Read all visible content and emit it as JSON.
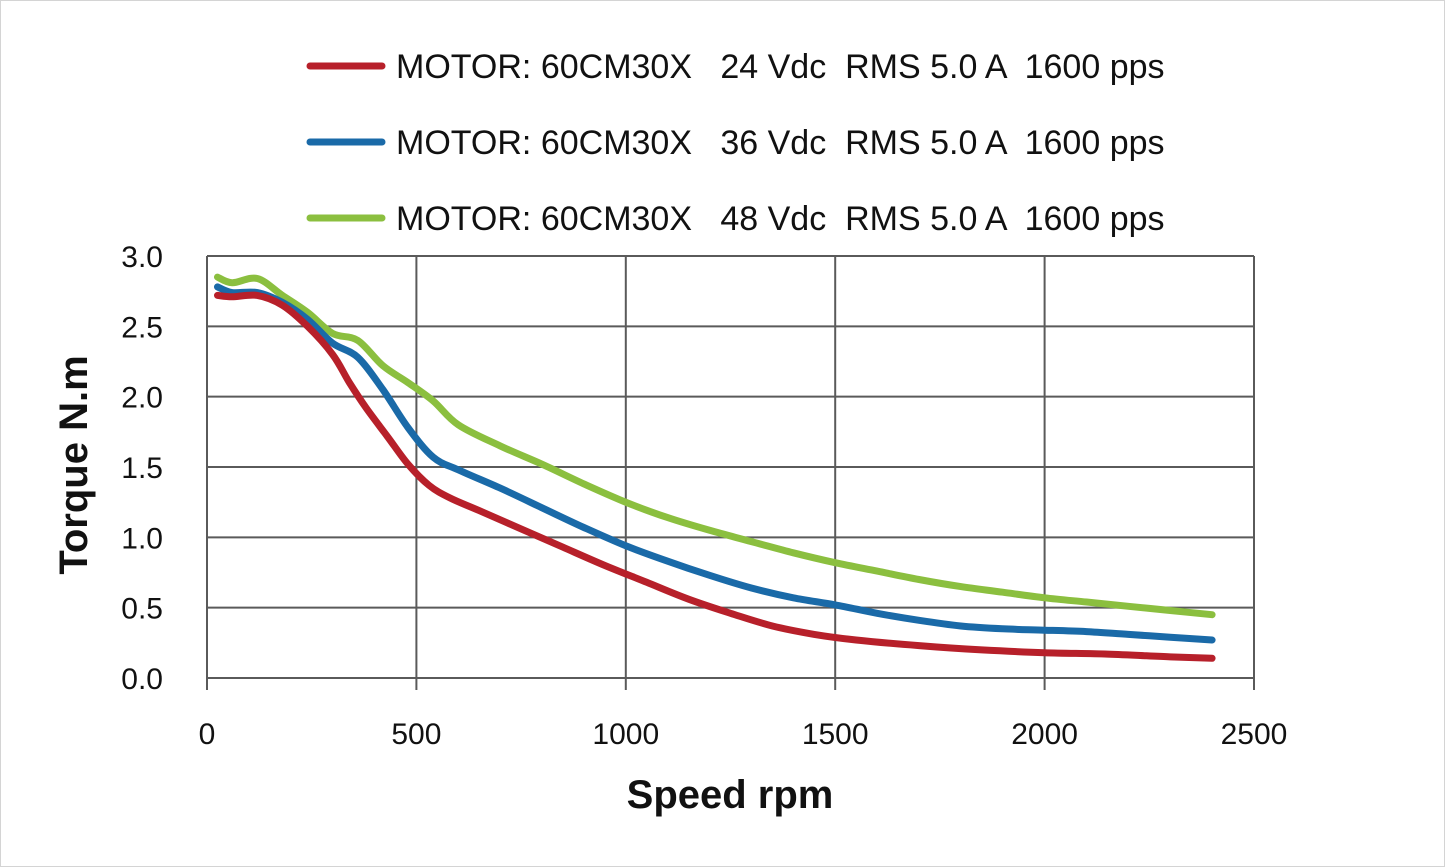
{
  "chart_data": {
    "type": "line",
    "title": "",
    "xlabel": "Speed rpm",
    "ylabel": "Torque N.m",
    "xlim": [
      0,
      2500
    ],
    "ylim": [
      0,
      3.0
    ],
    "x_ticks": [
      "0",
      "500",
      "1000",
      "1500",
      "2000",
      "2500"
    ],
    "y_ticks": [
      "0.0",
      "0.5",
      "1.0",
      "1.5",
      "2.0",
      "2.5",
      "3.0"
    ],
    "grid": true,
    "legend_position": "top",
    "series": [
      {
        "name": "MOTOR: 60CM30X   24 Vdc  RMS 5.0 A  1600 pps",
        "color": "#b7202a",
        "points": [
          [
            25,
            2.72
          ],
          [
            60,
            2.71
          ],
          [
            120,
            2.72
          ],
          [
            180,
            2.65
          ],
          [
            240,
            2.5
          ],
          [
            300,
            2.3
          ],
          [
            340,
            2.1
          ],
          [
            380,
            1.92
          ],
          [
            430,
            1.72
          ],
          [
            480,
            1.52
          ],
          [
            530,
            1.37
          ],
          [
            580,
            1.28
          ],
          [
            650,
            1.19
          ],
          [
            750,
            1.06
          ],
          [
            850,
            0.93
          ],
          [
            950,
            0.8
          ],
          [
            1050,
            0.68
          ],
          [
            1150,
            0.56
          ],
          [
            1250,
            0.46
          ],
          [
            1350,
            0.37
          ],
          [
            1450,
            0.31
          ],
          [
            1550,
            0.27
          ],
          [
            1700,
            0.23
          ],
          [
            1850,
            0.2
          ],
          [
            2000,
            0.18
          ],
          [
            2150,
            0.17
          ],
          [
            2300,
            0.15
          ],
          [
            2400,
            0.14
          ]
        ]
      },
      {
        "name": "MOTOR: 60CM30X   36 Vdc  RMS 5.0 A  1600 pps",
        "color": "#1a6aa8",
        "points": [
          [
            25,
            2.78
          ],
          [
            60,
            2.74
          ],
          [
            120,
            2.74
          ],
          [
            180,
            2.67
          ],
          [
            240,
            2.55
          ],
          [
            300,
            2.38
          ],
          [
            360,
            2.28
          ],
          [
            420,
            2.05
          ],
          [
            480,
            1.78
          ],
          [
            540,
            1.57
          ],
          [
            600,
            1.48
          ],
          [
            700,
            1.35
          ],
          [
            800,
            1.21
          ],
          [
            900,
            1.07
          ],
          [
            1000,
            0.94
          ],
          [
            1100,
            0.83
          ],
          [
            1200,
            0.73
          ],
          [
            1300,
            0.64
          ],
          [
            1400,
            0.57
          ],
          [
            1500,
            0.52
          ],
          [
            1600,
            0.46
          ],
          [
            1700,
            0.41
          ],
          [
            1800,
            0.37
          ],
          [
            1900,
            0.35
          ],
          [
            2000,
            0.34
          ],
          [
            2100,
            0.33
          ],
          [
            2200,
            0.31
          ],
          [
            2300,
            0.29
          ],
          [
            2400,
            0.27
          ]
        ]
      },
      {
        "name": "MOTOR: 60CM30X   48 Vdc  RMS 5.0 A  1600 pps",
        "color": "#8bbf3f",
        "points": [
          [
            25,
            2.85
          ],
          [
            60,
            2.81
          ],
          [
            120,
            2.84
          ],
          [
            180,
            2.72
          ],
          [
            240,
            2.6
          ],
          [
            300,
            2.45
          ],
          [
            360,
            2.4
          ],
          [
            420,
            2.22
          ],
          [
            480,
            2.1
          ],
          [
            540,
            1.97
          ],
          [
            600,
            1.8
          ],
          [
            700,
            1.65
          ],
          [
            800,
            1.52
          ],
          [
            900,
            1.38
          ],
          [
            1000,
            1.25
          ],
          [
            1100,
            1.14
          ],
          [
            1200,
            1.05
          ],
          [
            1300,
            0.97
          ],
          [
            1400,
            0.89
          ],
          [
            1500,
            0.82
          ],
          [
            1600,
            0.76
          ],
          [
            1700,
            0.7
          ],
          [
            1800,
            0.65
          ],
          [
            1900,
            0.61
          ],
          [
            2000,
            0.57
          ],
          [
            2100,
            0.54
          ],
          [
            2200,
            0.51
          ],
          [
            2300,
            0.48
          ],
          [
            2400,
            0.45
          ]
        ]
      }
    ]
  }
}
